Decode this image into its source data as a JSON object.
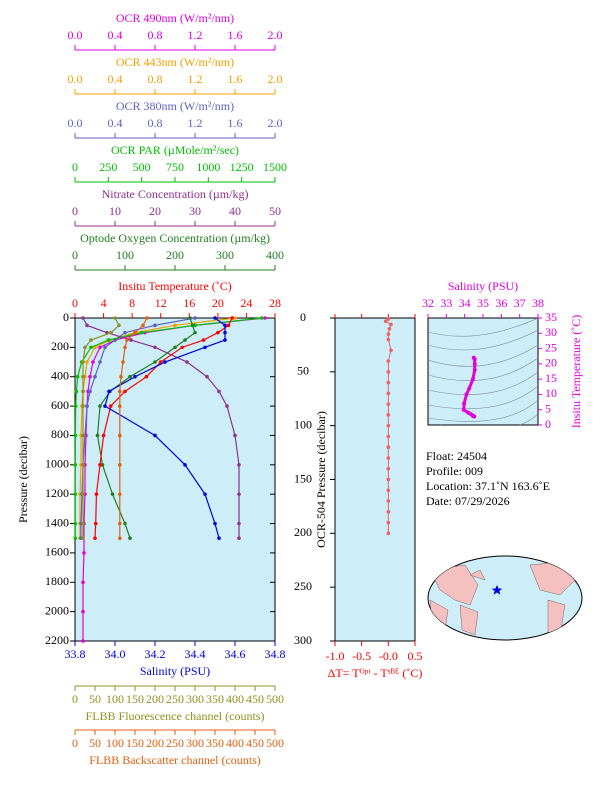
{
  "chart_data": [
    {
      "type": "profile",
      "y_label": "Pressure (decibar)",
      "ylim": [
        0,
        2200
      ],
      "yticks": [
        0,
        200,
        400,
        600,
        800,
        1000,
        1200,
        1400,
        1600,
        1800,
        2000,
        2200
      ],
      "x_axes": [
        {
          "label": "OCR 490nm (W/m²/nm)",
          "color": "#e000e0",
          "side": "top",
          "xlim": [
            0,
            2
          ],
          "xticks": [
            {
              "value": 0,
              "label": "0.0"
            },
            0.4,
            0.8,
            1.2,
            1.6,
            {
              "value": 2,
              "label": "2.0"
            }
          ]
        },
        {
          "label": "OCR 443nm (W/m²/nm)",
          "color": "#f0a000",
          "side": "top",
          "xlim": [
            0,
            2
          ],
          "xticks": [
            {
              "value": 0,
              "label": "0.0"
            },
            0.4,
            0.8,
            1.2,
            1.6,
            {
              "value": 2,
              "label": "2.0"
            }
          ]
        },
        {
          "label": "OCR 380nm (W/m²/nm)",
          "color": "#6060c0",
          "side": "top",
          "xlim": [
            0,
            2
          ],
          "xticks": [
            {
              "value": 0,
              "label": "0.0"
            },
            0.4,
            0.8,
            1.2,
            1.6,
            {
              "value": 2,
              "label": "2.0"
            }
          ]
        },
        {
          "label": "OCR PAR (µMole/m²/sec)",
          "color": "#00c000",
          "side": "top",
          "xlim": [
            0,
            1500
          ],
          "xticks": [
            0,
            250,
            500,
            750,
            1000,
            1250,
            1500
          ]
        },
        {
          "label": "Nitrate Concentration (µm/kg)",
          "color": "#903090",
          "side": "top",
          "xlim": [
            0,
            50
          ],
          "xticks": [
            0,
            10,
            20,
            30,
            40,
            50
          ]
        },
        {
          "label": "Optode Oxygen Concentration (µm/kg)",
          "color": "#208020",
          "side": "top",
          "xlim": [
            0,
            400
          ],
          "xticks": [
            0,
            100,
            200,
            300,
            400
          ]
        },
        {
          "label": "Insitu Temperature (˚C)",
          "color": "#ff0000",
          "side": "top",
          "xlim": [
            0,
            28
          ],
          "xticks": [
            0,
            4,
            8,
            12,
            16,
            20,
            24,
            28
          ]
        },
        {
          "label": "Salinity (PSU)",
          "color": "#0000e0",
          "side": "bottom",
          "xlim": [
            33.8,
            34.8
          ],
          "xticks": [
            33.8,
            {
              "value": 34,
              "label": "34.0"
            },
            34.2,
            34.4,
            34.6,
            34.8
          ]
        },
        {
          "label": "FLBB Fluorescence channel (counts)",
          "color": "#909020",
          "side": "bottom",
          "xlim": [
            0,
            500
          ],
          "xticks": [
            0,
            50,
            100,
            150,
            200,
            250,
            300,
            350,
            400,
            450,
            500
          ]
        },
        {
          "label": "FLBB Backscatter channel (counts)",
          "color": "#e06010",
          "side": "bottom",
          "xlim": [
            0,
            500
          ],
          "xticks": [
            0,
            50,
            100,
            150,
            200,
            250,
            300,
            350,
            400,
            450,
            500
          ]
        }
      ],
      "series": [
        {
          "axis": 0,
          "pressure": [
            0,
            50,
            100,
            150,
            200,
            300,
            400,
            500,
            600,
            800,
            1000,
            1200,
            1400,
            1600,
            1800,
            2000,
            2200
          ],
          "values": [
            1.9,
            1.2,
            0.7,
            0.4,
            0.25,
            0.18,
            0.15,
            0.13,
            0.12,
            0.11,
            0.1,
            0.1,
            0.09,
            0.09,
            0.08,
            0.08,
            0.08
          ]
        },
        {
          "axis": 1,
          "pressure": [
            0,
            50,
            100,
            150,
            200,
            300,
            400,
            500,
            600,
            800,
            1000,
            1200,
            1400,
            1500
          ],
          "values": [
            1.6,
            1.0,
            0.6,
            0.35,
            0.2,
            0.12,
            0.1,
            0.08,
            0.07,
            0.06,
            0.06,
            0.05,
            0.05,
            0.05
          ]
        },
        {
          "axis": 2,
          "pressure": [
            0,
            50,
            100,
            150,
            200,
            300,
            400,
            500,
            600,
            800,
            1000,
            1200,
            1400,
            1500
          ],
          "values": [
            1.2,
            0.8,
            0.5,
            0.4,
            0.3,
            0.25,
            0.2,
            0.15,
            0.12,
            0.1,
            0.08,
            0.07,
            0.06,
            0.06
          ]
        },
        {
          "axis": 3,
          "pressure": [
            0,
            50,
            100,
            150,
            200,
            300,
            400,
            500,
            600,
            800,
            1000,
            1200,
            1400,
            1500
          ],
          "values": [
            1400,
            900,
            500,
            250,
            120,
            50,
            20,
            10,
            5,
            3,
            2,
            2,
            2,
            2
          ]
        },
        {
          "axis": 4,
          "pressure": [
            0,
            50,
            100,
            150,
            200,
            300,
            400,
            500,
            600,
            800,
            1000,
            1200,
            1400,
            1500
          ],
          "values": [
            2,
            3,
            8,
            14,
            20,
            28,
            33,
            36,
            38,
            40,
            41,
            41,
            41,
            41
          ]
        },
        {
          "axis": 5,
          "pressure": [
            0,
            50,
            100,
            150,
            200,
            300,
            400,
            500,
            600,
            800,
            1000,
            1200,
            1400,
            1500
          ],
          "values": [
            230,
            235,
            240,
            220,
            200,
            160,
            110,
            70,
            50,
            45,
            55,
            75,
            100,
            110
          ]
        },
        {
          "axis": 6,
          "pressure": [
            0,
            50,
            100,
            150,
            200,
            300,
            400,
            500,
            600,
            800,
            1000,
            1200,
            1400,
            1500
          ],
          "values": [
            22,
            21.5,
            20,
            18,
            15,
            12,
            10,
            7,
            5,
            4,
            3.5,
            3,
            2.9,
            2.8
          ]
        },
        {
          "axis": 7,
          "pressure": [
            0,
            50,
            100,
            150,
            200,
            300,
            400,
            500,
            600,
            800,
            1000,
            1200,
            1400,
            1500
          ],
          "values": [
            34.5,
            34.55,
            34.55,
            34.55,
            34.45,
            34.25,
            34.1,
            33.97,
            33.95,
            34.2,
            34.35,
            34.45,
            34.5,
            34.52
          ]
        },
        {
          "axis": 8,
          "pressure": [
            0,
            50,
            100,
            150,
            200,
            300,
            400,
            500,
            600,
            800,
            1000,
            1200,
            1400,
            1500
          ],
          "values": [
            100,
            110,
            90,
            40,
            25,
            20,
            20,
            20,
            20,
            20,
            20,
            20,
            20,
            20
          ]
        },
        {
          "axis": 9,
          "pressure": [
            0,
            50,
            100,
            150,
            200,
            300,
            400,
            500,
            600,
            800,
            1000,
            1200,
            1400,
            1500
          ],
          "values": [
            180,
            170,
            150,
            130,
            125,
            120,
            115,
            112,
            112,
            112,
            112,
            112,
            112,
            112
          ]
        }
      ]
    },
    {
      "type": "delta",
      "y_label": "OCR-504 Pressure (decibar)",
      "x_label": "ΔT= Tᴼᵖᵗ - Tˢᴮᴱ (˚C)",
      "color": "#f06060",
      "axis_color": "#ff0000",
      "xlim": [
        -1,
        0.5
      ],
      "xticks": [
        {
          "value": -1,
          "label": "-1.0"
        },
        -0.5,
        {
          "value": 0,
          "label": "-0.0"
        },
        0.5
      ],
      "ylim": [
        0,
        300
      ],
      "yticks": [
        0,
        50,
        100,
        150,
        200,
        250,
        300
      ],
      "pressure": [
        1,
        3,
        6,
        10,
        15,
        20,
        30,
        40,
        50,
        60,
        70,
        80,
        90,
        100,
        110,
        120,
        130,
        140,
        150,
        160,
        170,
        180,
        190,
        200
      ],
      "values": [
        0,
        -0.05,
        0.05,
        0.02,
        0,
        0,
        0.05,
        0,
        0,
        0,
        0,
        0,
        0,
        0,
        0,
        0,
        0,
        0,
        0,
        0,
        0,
        0,
        0,
        0
      ]
    },
    {
      "type": "ts",
      "x_label": "Salinity (PSU)",
      "y_label": "Insitu Temperature (˚C)",
      "color": "#e000e0",
      "xlim": [
        32,
        38
      ],
      "xticks": [
        32,
        33,
        34,
        35,
        36,
        37,
        38
      ],
      "ylim": [
        0,
        35
      ],
      "yticks": [
        0,
        5,
        10,
        15,
        20,
        25,
        30,
        35
      ],
      "x": [
        34.52,
        34.5,
        34.45,
        34.35,
        34.2,
        33.95,
        33.97,
        34.1,
        34.25,
        34.45,
        34.55,
        34.55,
        34.55,
        34.5
      ],
      "values": [
        2.8,
        2.9,
        3,
        3.5,
        4,
        5,
        7,
        10,
        12,
        15,
        18,
        20,
        21.5,
        22
      ]
    }
  ],
  "info": {
    "lines": [
      "Float:  24504",
      "Profile:  009",
      "Location:  37.1˚N  163.6˚E",
      "Date:  07/29/2026"
    ]
  }
}
